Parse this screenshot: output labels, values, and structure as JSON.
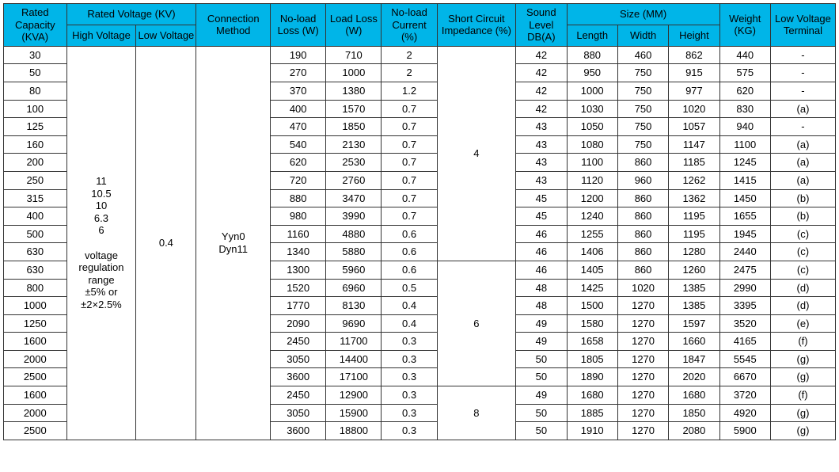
{
  "table": {
    "header_bg": "#00b5e8",
    "header_color": "#000000",
    "border_color": "#333333",
    "background_color": "#ffffff",
    "font_family": "Arial, sans-serif",
    "font_size": 13,
    "headers": {
      "rated_capacity": "Rated Capacity (KVA)",
      "rated_voltage": "Rated Voltage (KV)",
      "high_voltage": "High Voltage",
      "low_voltage": "Low Voltage",
      "connection_method": "Connection Method",
      "no_load_loss": "No-load Loss (W)",
      "load_loss": "Load Loss (W)",
      "no_load_current": "No-load Current (%)",
      "short_circuit_impedance": "Short Circuit Impedance (%)",
      "sound_level": "Sound Level DB(A)",
      "size": "Size (MM)",
      "length": "Length",
      "width": "Width",
      "height": "Height",
      "weight": "Weight (KG)",
      "low_voltage_terminal": "Low Voltage Terminal"
    },
    "shared": {
      "high_voltage_text": "11\n10.5\n10\n6.3\n6\n\nvoltage regulation range\n±5% or\n±2×2.5%",
      "low_voltage_value": "0.4",
      "connection_value": "Yyn0\nDyn11"
    },
    "impedance_groups": [
      {
        "value": "4",
        "row_span": 12
      },
      {
        "value": "6",
        "row_span": 7
      },
      {
        "value": "8",
        "row_span": 3
      }
    ],
    "rows": [
      {
        "capacity": "30",
        "nlloss": "190",
        "lloss": "710",
        "nlcur": "2",
        "sound": "42",
        "len": "880",
        "wid": "460",
        "hgt": "862",
        "wgt": "440",
        "term": "-"
      },
      {
        "capacity": "50",
        "nlloss": "270",
        "lloss": "1000",
        "nlcur": "2",
        "sound": "42",
        "len": "950",
        "wid": "750",
        "hgt": "915",
        "wgt": "575",
        "term": "-"
      },
      {
        "capacity": "80",
        "nlloss": "370",
        "lloss": "1380",
        "nlcur": "1.2",
        "sound": "42",
        "len": "1000",
        "wid": "750",
        "hgt": "977",
        "wgt": "620",
        "term": "-"
      },
      {
        "capacity": "100",
        "nlloss": "400",
        "lloss": "1570",
        "nlcur": "0.7",
        "sound": "42",
        "len": "1030",
        "wid": "750",
        "hgt": "1020",
        "wgt": "830",
        "term": "(a)"
      },
      {
        "capacity": "125",
        "nlloss": "470",
        "lloss": "1850",
        "nlcur": "0.7",
        "sound": "43",
        "len": "1050",
        "wid": "750",
        "hgt": "1057",
        "wgt": "940",
        "term": "-"
      },
      {
        "capacity": "160",
        "nlloss": "540",
        "lloss": "2130",
        "nlcur": "0.7",
        "sound": "43",
        "len": "1080",
        "wid": "750",
        "hgt": "1147",
        "wgt": "1100",
        "term": "(a)"
      },
      {
        "capacity": "200",
        "nlloss": "620",
        "lloss": "2530",
        "nlcur": "0.7",
        "sound": "43",
        "len": "1100",
        "wid": "860",
        "hgt": "1185",
        "wgt": "1245",
        "term": "(a)"
      },
      {
        "capacity": "250",
        "nlloss": "720",
        "lloss": "2760",
        "nlcur": "0.7",
        "sound": "43",
        "len": "1120",
        "wid": "960",
        "hgt": "1262",
        "wgt": "1415",
        "term": "(a)"
      },
      {
        "capacity": "315",
        "nlloss": "880",
        "lloss": "3470",
        "nlcur": "0.7",
        "sound": "45",
        "len": "1200",
        "wid": "860",
        "hgt": "1362",
        "wgt": "1450",
        "term": "(b)"
      },
      {
        "capacity": "400",
        "nlloss": "980",
        "lloss": "3990",
        "nlcur": "0.7",
        "sound": "45",
        "len": "1240",
        "wid": "860",
        "hgt": "1195",
        "wgt": "1655",
        "term": "(b)"
      },
      {
        "capacity": "500",
        "nlloss": "1160",
        "lloss": "4880",
        "nlcur": "0.6",
        "sound": "46",
        "len": "1255",
        "wid": "860",
        "hgt": "1195",
        "wgt": "1945",
        "term": "(c)"
      },
      {
        "capacity": "630",
        "nlloss": "1340",
        "lloss": "5880",
        "nlcur": "0.6",
        "sound": "46",
        "len": "1406",
        "wid": "860",
        "hgt": "1280",
        "wgt": "2440",
        "term": "(c)"
      },
      {
        "capacity": "630",
        "nlloss": "1300",
        "lloss": "5960",
        "nlcur": "0.6",
        "sound": "46",
        "len": "1405",
        "wid": "860",
        "hgt": "1260",
        "wgt": "2475",
        "term": "(c)"
      },
      {
        "capacity": "800",
        "nlloss": "1520",
        "lloss": "6960",
        "nlcur": "0.5",
        "sound": "48",
        "len": "1425",
        "wid": "1020",
        "hgt": "1385",
        "wgt": "2990",
        "term": "(d)"
      },
      {
        "capacity": "1000",
        "nlloss": "1770",
        "lloss": "8130",
        "nlcur": "0.4",
        "sound": "48",
        "len": "1500",
        "wid": "1270",
        "hgt": "1385",
        "wgt": "3395",
        "term": "(d)"
      },
      {
        "capacity": "1250",
        "nlloss": "2090",
        "lloss": "9690",
        "nlcur": "0.4",
        "sound": "49",
        "len": "1580",
        "wid": "1270",
        "hgt": "1597",
        "wgt": "3520",
        "term": "(e)"
      },
      {
        "capacity": "1600",
        "nlloss": "2450",
        "lloss": "11700",
        "nlcur": "0.3",
        "sound": "49",
        "len": "1658",
        "wid": "1270",
        "hgt": "1660",
        "wgt": "4165",
        "term": "(f)"
      },
      {
        "capacity": "2000",
        "nlloss": "3050",
        "lloss": "14400",
        "nlcur": "0.3",
        "sound": "50",
        "len": "1805",
        "wid": "1270",
        "hgt": "1847",
        "wgt": "5545",
        "term": "(g)"
      },
      {
        "capacity": "2500",
        "nlloss": "3600",
        "lloss": "17100",
        "nlcur": "0.3",
        "sound": "50",
        "len": "1890",
        "wid": "1270",
        "hgt": "2020",
        "wgt": "6670",
        "term": "(g)"
      },
      {
        "capacity": "1600",
        "nlloss": "2450",
        "lloss": "12900",
        "nlcur": "0.3",
        "sound": "49",
        "len": "1680",
        "wid": "1270",
        "hgt": "1680",
        "wgt": "3720",
        "term": "(f)"
      },
      {
        "capacity": "2000",
        "nlloss": "3050",
        "lloss": "15900",
        "nlcur": "0.3",
        "sound": "50",
        "len": "1885",
        "wid": "1270",
        "hgt": "1850",
        "wgt": "4920",
        "term": "(g)"
      },
      {
        "capacity": "2500",
        "nlloss": "3600",
        "lloss": "18800",
        "nlcur": "0.3",
        "sound": "50",
        "len": "1910",
        "wid": "1270",
        "hgt": "2080",
        "wgt": "5900",
        "term": "(g)"
      }
    ]
  }
}
